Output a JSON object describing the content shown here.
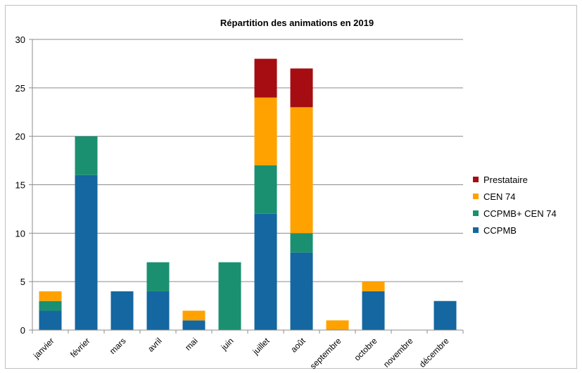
{
  "chart_data": {
    "type": "bar",
    "stacked": true,
    "title": "Répartition  des animations en 2019",
    "xlabel": "",
    "ylabel": "",
    "ylim": [
      0,
      30
    ],
    "yticks": [
      0,
      5,
      10,
      15,
      20,
      25,
      30
    ],
    "grid": true,
    "legend_position": "right",
    "categories": [
      "janvier",
      "février",
      "mars",
      "avril",
      "mai",
      "juin",
      "juillet",
      "août",
      "septembre",
      "octobre",
      "novembre",
      "décembre"
    ],
    "series": [
      {
        "name": "CCPMB",
        "color": "#1467a0",
        "values": [
          2,
          16,
          4,
          4,
          1,
          0,
          12,
          8,
          0,
          4,
          0,
          3
        ]
      },
      {
        "name": "CCPMB+ CEN 74",
        "color": "#1a9070",
        "values": [
          1,
          4,
          0,
          3,
          0,
          7,
          5,
          2,
          0,
          0,
          0,
          0
        ]
      },
      {
        "name": "CEN 74",
        "color": "#ffa200",
        "values": [
          1,
          0,
          0,
          0,
          1,
          0,
          7,
          13,
          1,
          1,
          0,
          0
        ]
      },
      {
        "name": "Prestataire",
        "color": "#a50d12",
        "values": [
          0,
          0,
          0,
          0,
          0,
          0,
          4,
          4,
          0,
          0,
          0,
          0
        ]
      }
    ],
    "legend_order": [
      "Prestataire",
      "CEN 74",
      "CCPMB+ CEN 74",
      "CCPMB"
    ]
  }
}
